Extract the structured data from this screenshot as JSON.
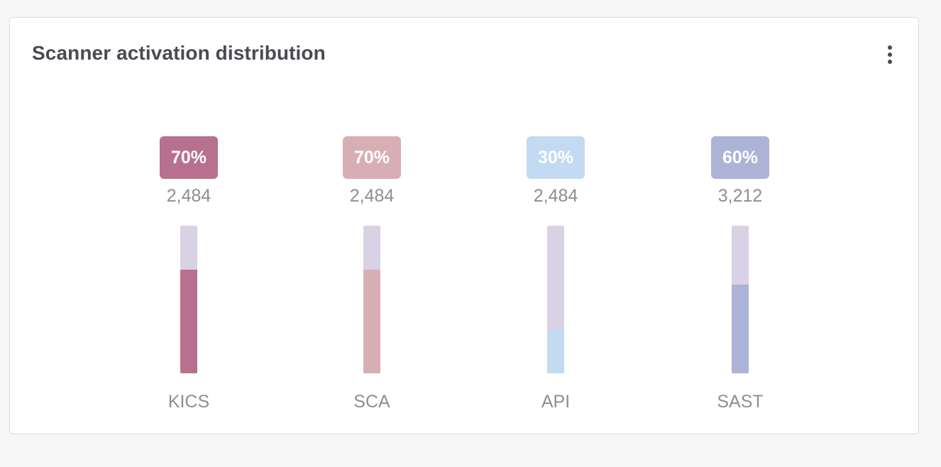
{
  "card": {
    "title": "Scanner activation distribution",
    "menu_icon": "more-vertical-icon"
  },
  "chart_data": {
    "type": "bar",
    "title": "",
    "categories": [
      "KICS",
      "SCA",
      "API",
      "SAST"
    ],
    "values": [
      70,
      70,
      30,
      60
    ],
    "labels": [
      "70%",
      "70%",
      "30%",
      "60%"
    ],
    "counts": [
      "2,484",
      "2,484",
      "2,484",
      "3,212"
    ],
    "ylim": [
      0,
      100
    ],
    "unit": "%",
    "grid": false,
    "legend": "none",
    "track_color": "#d9d2e4",
    "colors": [
      "#b8708f",
      "#d8aeb5",
      "#c2daf2",
      "#acb3d6"
    ]
  }
}
